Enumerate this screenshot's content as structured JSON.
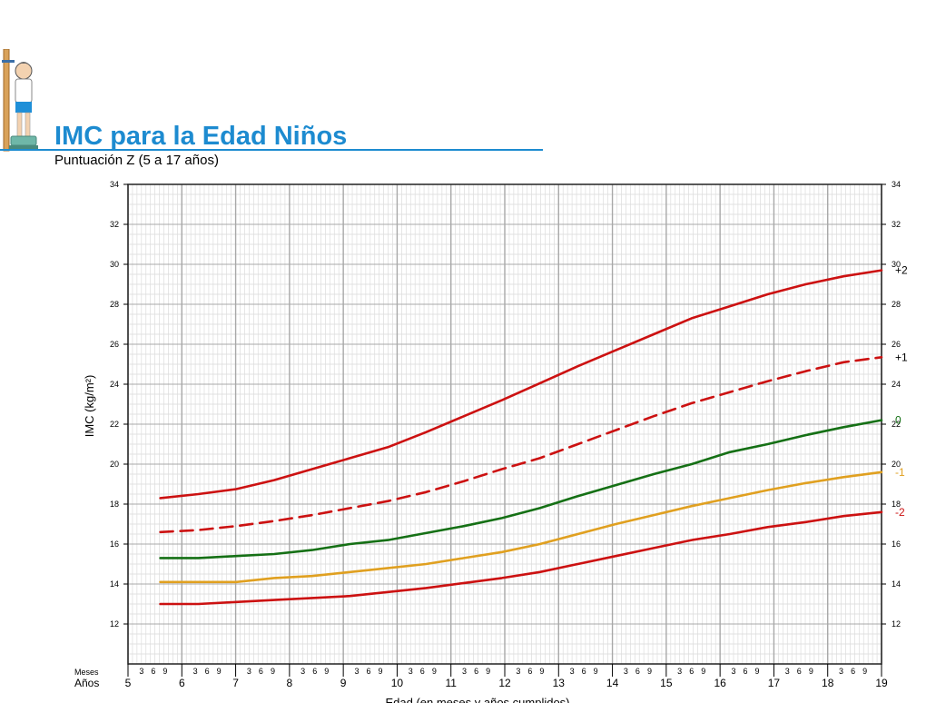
{
  "header": {
    "title": "IMC para la Edad Niños",
    "subtitle": "Puntuación Z (5 a 17 años)"
  },
  "chart_data": {
    "type": "line",
    "ylabel": "IMC (kg/m²)",
    "xlabel": "Edad (en meses y años cumplidos)",
    "x_row_labels": {
      "months": "Meses",
      "years": "Años"
    },
    "xlim": [
      5,
      19
    ],
    "ylim": [
      10,
      34
    ],
    "y_ticks": [
      12,
      14,
      16,
      18,
      20,
      22,
      24,
      26,
      28,
      30,
      32,
      34
    ],
    "x_major_ticks": [
      5,
      6,
      7,
      8,
      9,
      10,
      11,
      12,
      13,
      14,
      15,
      16,
      17,
      18,
      19
    ],
    "x_month_ticks": [
      "3",
      "6",
      "9"
    ],
    "grid": true,
    "x": [
      5.5,
      6,
      6.5,
      7,
      7.5,
      8,
      8.5,
      9,
      9.5,
      10,
      10.5,
      11,
      11.5,
      12,
      12.5,
      13,
      13.5,
      14,
      14.5,
      15,
      15.5,
      16,
      16.5,
      17,
      17.5,
      18,
      18.5,
      19
    ],
    "series": [
      {
        "name": "+2",
        "color": "#cc1111",
        "dash": false,
        "values": [
          18.3,
          18.5,
          18.75,
          19.2,
          19.75,
          20.3,
          20.85,
          21.6,
          22.4,
          23.2,
          24.05,
          24.9,
          25.7,
          26.5,
          27.3,
          27.9,
          28.5,
          29.0,
          29.4,
          29.7
        ],
        "x": [
          5.5,
          6,
          6.5,
          7,
          7.5,
          8,
          8.5,
          9,
          9.5,
          10,
          10.5,
          11,
          11.5,
          12,
          12.5,
          13,
          13.5,
          14,
          14.5,
          15
        ]
      },
      {
        "name": "+1",
        "color": "#cc1111",
        "dash": true,
        "values": [
          16.6,
          16.7,
          16.9,
          17.15,
          17.45,
          17.8,
          18.15,
          18.6,
          19.15,
          19.75,
          20.3,
          21.0,
          21.7,
          22.4,
          23.05,
          23.6,
          24.15,
          24.65,
          25.1,
          25.35
        ],
        "x": [
          5.5,
          6,
          6.5,
          7,
          7.5,
          8,
          8.5,
          9,
          9.5,
          10,
          10.5,
          11,
          11.5,
          12,
          12.5,
          13,
          13.5,
          14,
          14.5,
          15
        ]
      },
      {
        "name": "0",
        "color": "#157015",
        "dash": false,
        "values": [
          15.3,
          15.3,
          15.4,
          15.5,
          15.7,
          16.0,
          16.2,
          16.55,
          16.9,
          17.3,
          17.8,
          18.4,
          18.95,
          19.5,
          20.0,
          20.6,
          21.0,
          21.45,
          21.85,
          22.2
        ],
        "x": [
          5.5,
          6,
          6.5,
          7,
          7.5,
          8,
          8.5,
          9,
          9.5,
          10,
          10.5,
          11,
          11.5,
          12,
          12.5,
          13,
          13.5,
          14,
          14.5,
          15
        ]
      },
      {
        "name": "-1",
        "color": "#e0a020",
        "dash": false,
        "values": [
          14.1,
          14.1,
          14.1,
          14.3,
          14.4,
          14.6,
          14.8,
          15.0,
          15.3,
          15.6,
          16.0,
          16.5,
          17.0,
          17.45,
          17.9,
          18.3,
          18.7,
          19.05,
          19.35,
          19.6
        ],
        "x": [
          5.5,
          6,
          6.5,
          7,
          7.5,
          8,
          8.5,
          9,
          9.5,
          10,
          10.5,
          11,
          11.5,
          12,
          12.5,
          13,
          13.5,
          14,
          14.5,
          15
        ]
      },
      {
        "name": "-2",
        "color": "#cc1111",
        "dash": false,
        "values": [
          13.0,
          13.0,
          13.1,
          13.2,
          13.3,
          13.4,
          13.6,
          13.8,
          14.05,
          14.3,
          14.6,
          15.0,
          15.4,
          15.8,
          16.2,
          16.5,
          16.85,
          17.1,
          17.4,
          17.6
        ],
        "x": [
          5.5,
          6,
          6.5,
          7,
          7.5,
          8,
          8.5,
          9,
          9.5,
          10,
          10.5,
          11,
          11.5,
          12,
          12.5,
          13,
          13.5,
          14,
          14.5,
          15
        ]
      }
    ]
  }
}
